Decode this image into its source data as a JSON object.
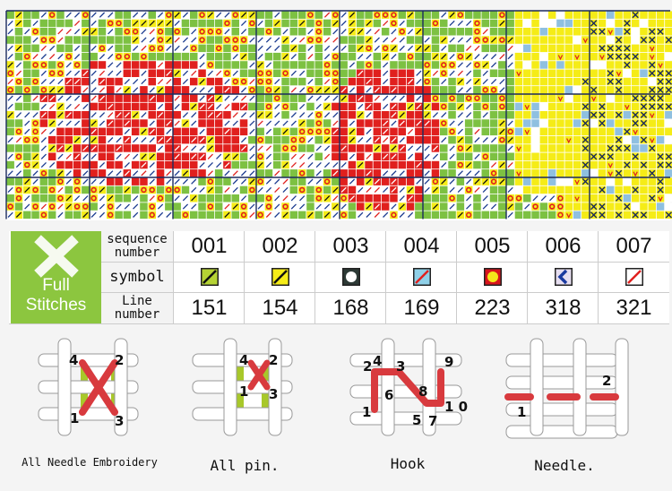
{
  "pattern_colors": {
    "green": "#7dc142",
    "yellow": "#f5ec17",
    "red": "#e0201e",
    "white": "#ffffff",
    "blue": "#1a3a8f",
    "orange": "#f3a51a"
  },
  "legend": {
    "brand_line1": "Full",
    "brand_line2": "Stitches",
    "row_labels": [
      "sequence number",
      "symbol",
      "Line number"
    ],
    "columns": [
      {
        "seq": "001",
        "line": "151",
        "symbol": "slash-on-lime",
        "bg": "#b5d334",
        "fg": "#111111"
      },
      {
        "seq": "002",
        "line": "154",
        "symbol": "slash-on-yellow",
        "bg": "#f5ec17",
        "fg": "#111111"
      },
      {
        "seq": "003",
        "line": "168",
        "symbol": "circle-on-dark",
        "bg": "#2d3a36",
        "fg": "#ffffff"
      },
      {
        "seq": "004",
        "line": "169",
        "symbol": "red-slash-on-blue",
        "bg": "#8fd0e8",
        "fg": "#e0201e"
      },
      {
        "seq": "005",
        "line": "223",
        "symbol": "yellow-dot-on-red",
        "bg": "#d8141c",
        "fg": "#f5e51a"
      },
      {
        "seq": "006",
        "line": "318",
        "symbol": "chevron-on-lilac",
        "bg": "#e6def0",
        "fg": "#1a3a9f"
      },
      {
        "seq": "007",
        "line": "321",
        "symbol": "red-slash-on-white",
        "bg": "#ffffff",
        "fg": "#e0201e"
      }
    ]
  },
  "diagrams": [
    {
      "caption": "All Needle Embroidery",
      "numbers": [
        "4",
        "2",
        "1",
        "3"
      ]
    },
    {
      "caption": "All pin.",
      "numbers": [
        "4",
        "2",
        "1",
        "3"
      ]
    },
    {
      "caption": "Hook",
      "numbers": [
        "2",
        "4",
        "3",
        "9",
        "6",
        "8",
        "1",
        "5",
        "7",
        "1 0"
      ]
    },
    {
      "caption": "Needle.",
      "numbers": [
        "2",
        "1"
      ]
    }
  ]
}
